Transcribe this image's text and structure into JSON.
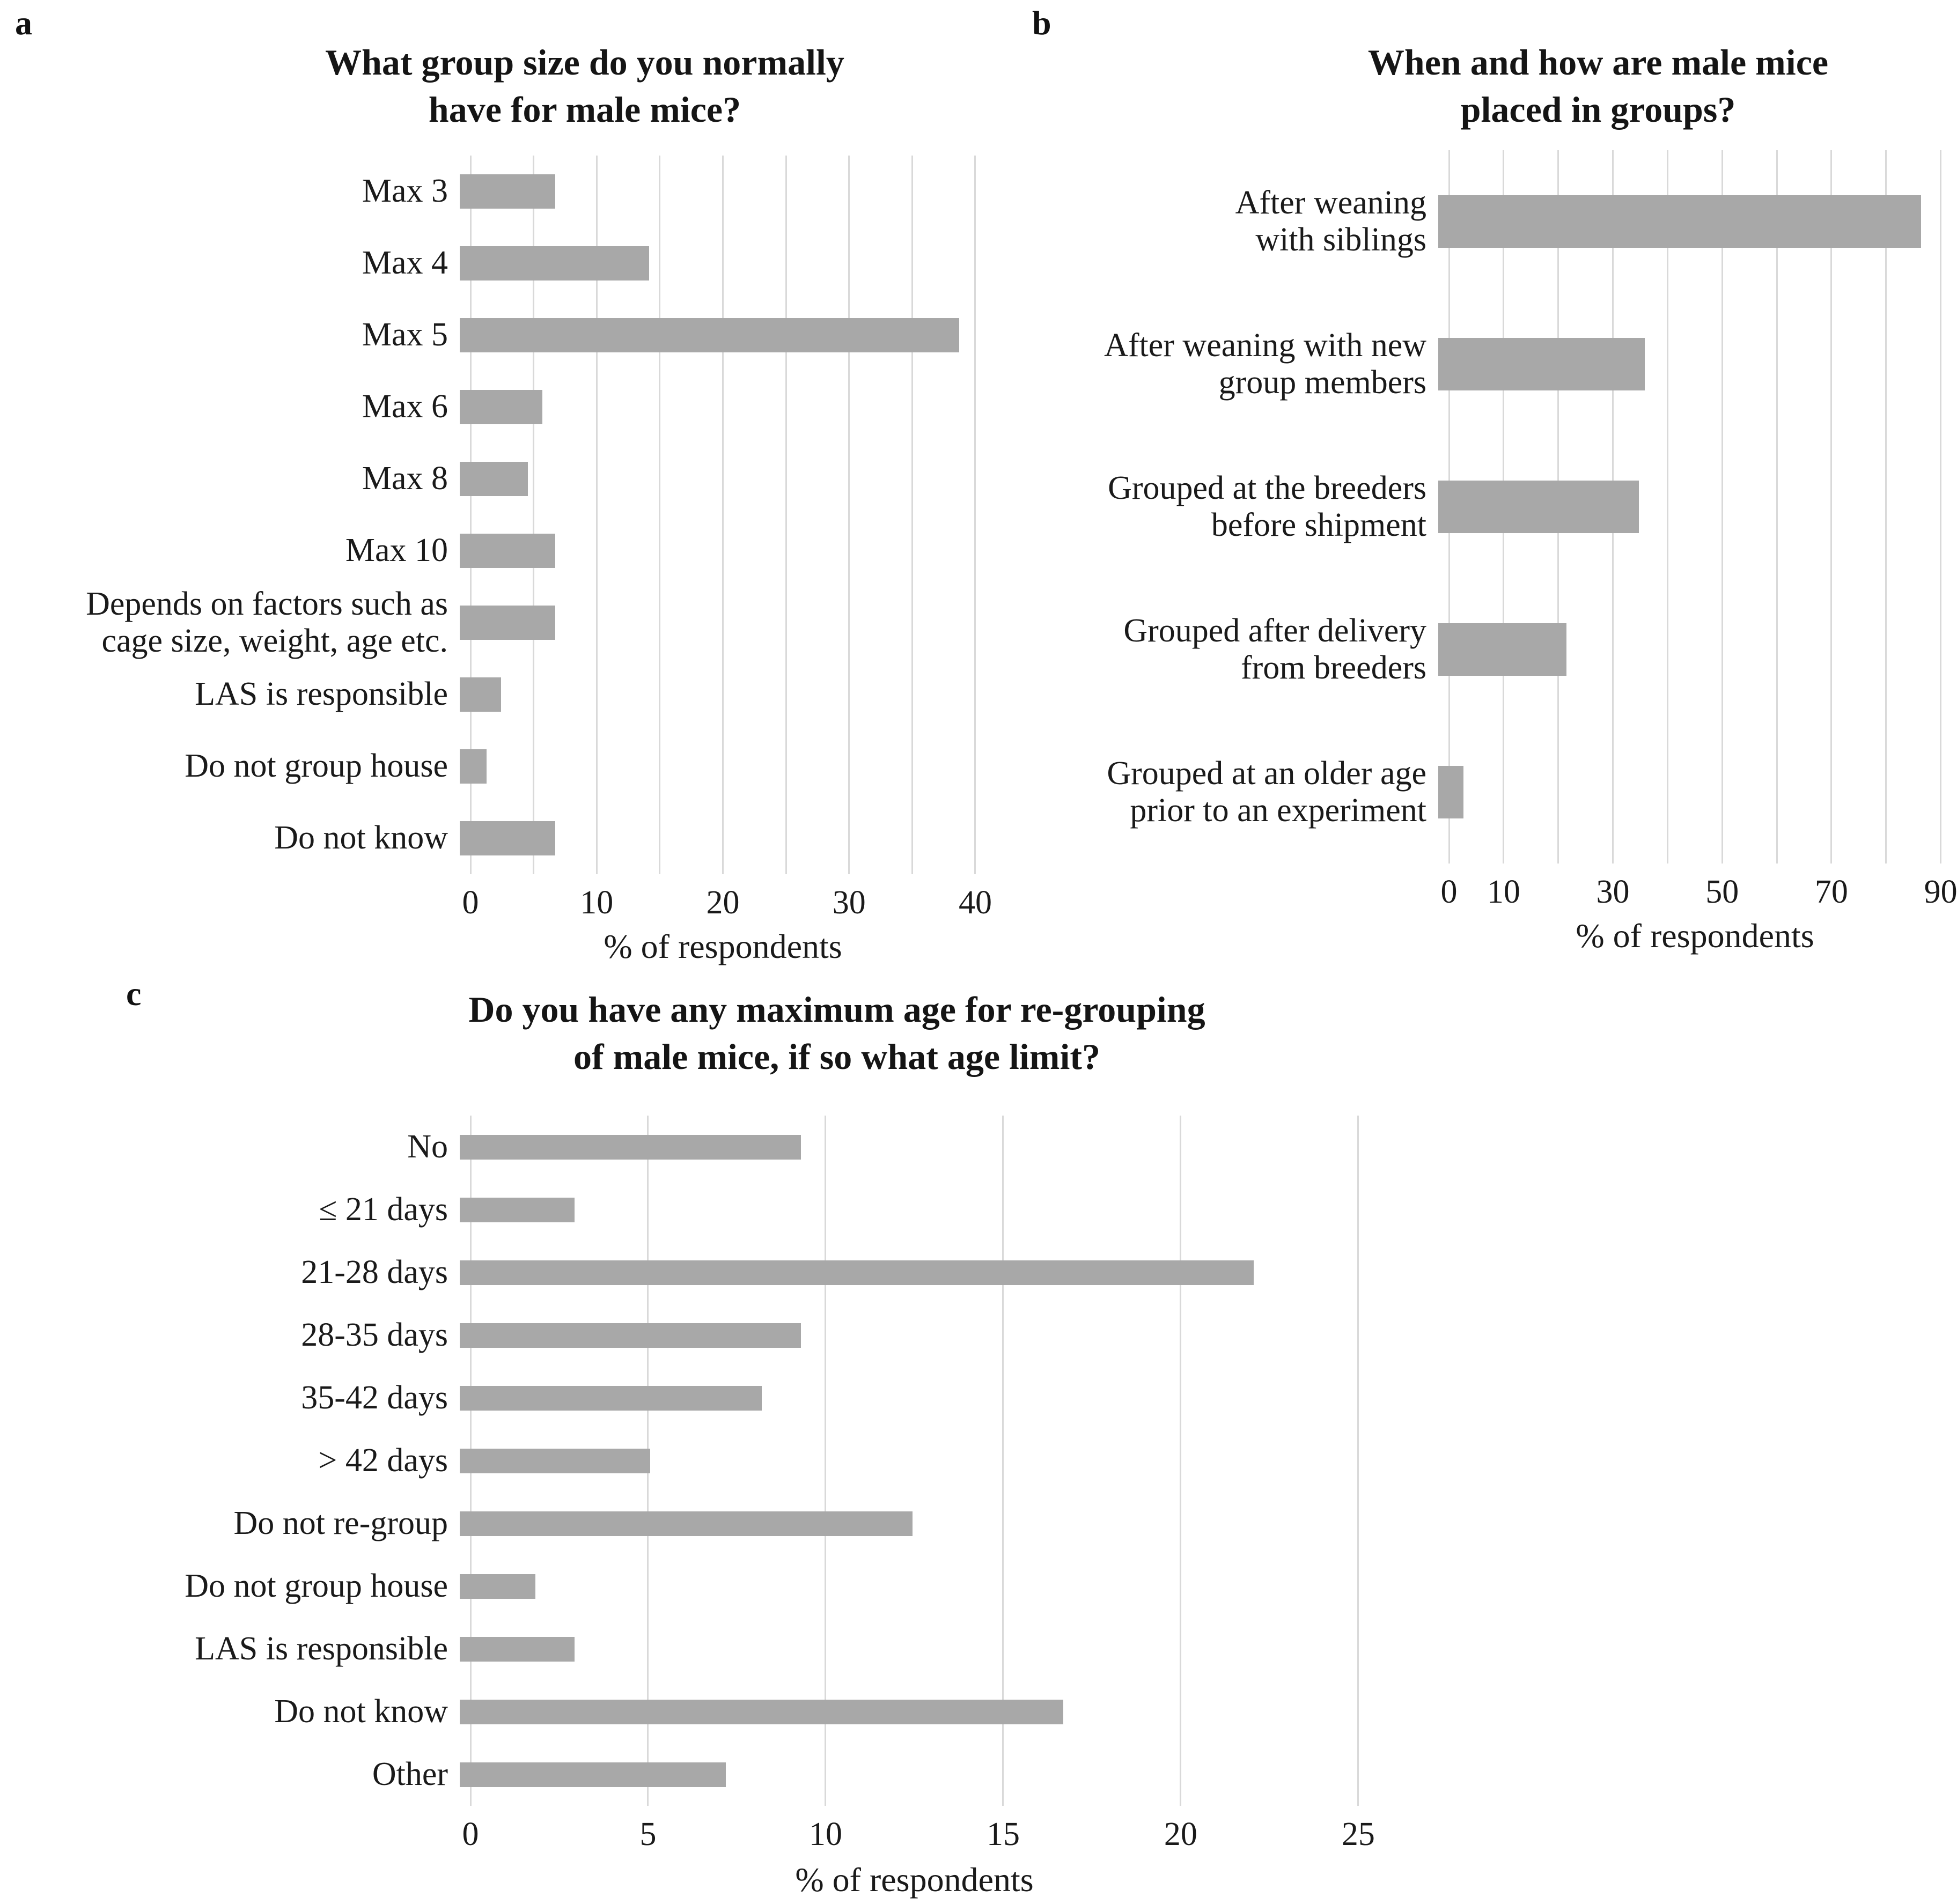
{
  "figure": {
    "bar_color": "#a8a8a8",
    "gridline_color": "#d9d9d9",
    "text_color": "#1a1a1a"
  },
  "chart_data": [
    {
      "panel_label": "a",
      "type": "bar",
      "orientation": "horizontal",
      "title": "What group size do you normally\nhave for male mice?",
      "categories": [
        "Max 3",
        "Max 4",
        "Max 5",
        "Max 6",
        "Max 8",
        "Max 10",
        "Depends on factors such as\ncage size, weight, age etc.",
        "LAS is responsible",
        "Do not group house",
        "Do not know"
      ],
      "values": [
        7.4,
        14.7,
        38.8,
        6.4,
        5.3,
        7.4,
        7.4,
        3.2,
        2.1,
        7.4
      ],
      "xlabel": "% of respondents",
      "ylabel": "",
      "xlim": [
        0,
        42
      ],
      "xticks": [
        0,
        10,
        20,
        30,
        40
      ],
      "gridline_step": 5,
      "gridline_max": 40,
      "grid": "vertical",
      "legend": "none"
    },
    {
      "panel_label": "b",
      "type": "bar",
      "orientation": "horizontal",
      "title": "When and how are male mice\nplaced in groups?",
      "categories": [
        "After weaning\nwith siblings",
        "After weaning with new\ngroup members",
        "Grouped at the breeders\nbefore shipment",
        "Grouped after delivery\nfrom breeders",
        "Grouped at an older age\nprior to an experiment"
      ],
      "values": [
        86.5,
        37,
        36,
        23,
        4.5
      ],
      "xlabel": "% of respondents",
      "ylabel": "",
      "xlim": [
        0,
        92
      ],
      "xticks": [
        0,
        10,
        30,
        50,
        70,
        90
      ],
      "gridline_step": 10,
      "gridline_max": 90,
      "grid": "vertical",
      "legend": "none"
    },
    {
      "panel_label": "c",
      "type": "bar",
      "orientation": "horizontal",
      "title": "Do you have any maximum age for re-grouping\nof male mice, if so what age limit?",
      "categories": [
        "No",
        "≤ 21 days",
        "21-28 days",
        "28-35 days",
        "35-42 days",
        "> 42 days",
        "Do not re-group",
        "Do not group house",
        "LAS is responsible",
        "Do not know",
        "Other"
      ],
      "values": [
        9.5,
        3.2,
        22.1,
        9.5,
        8.4,
        5.3,
        12.6,
        2.1,
        3.2,
        16.8,
        7.4
      ],
      "xlabel": "% of respondents",
      "ylabel": "",
      "xlim": [
        0,
        25.5
      ],
      "xticks": [
        0,
        5,
        10,
        15,
        20,
        25
      ],
      "gridline_step": 5,
      "gridline_max": 25,
      "grid": "vertical",
      "legend": "none"
    }
  ]
}
